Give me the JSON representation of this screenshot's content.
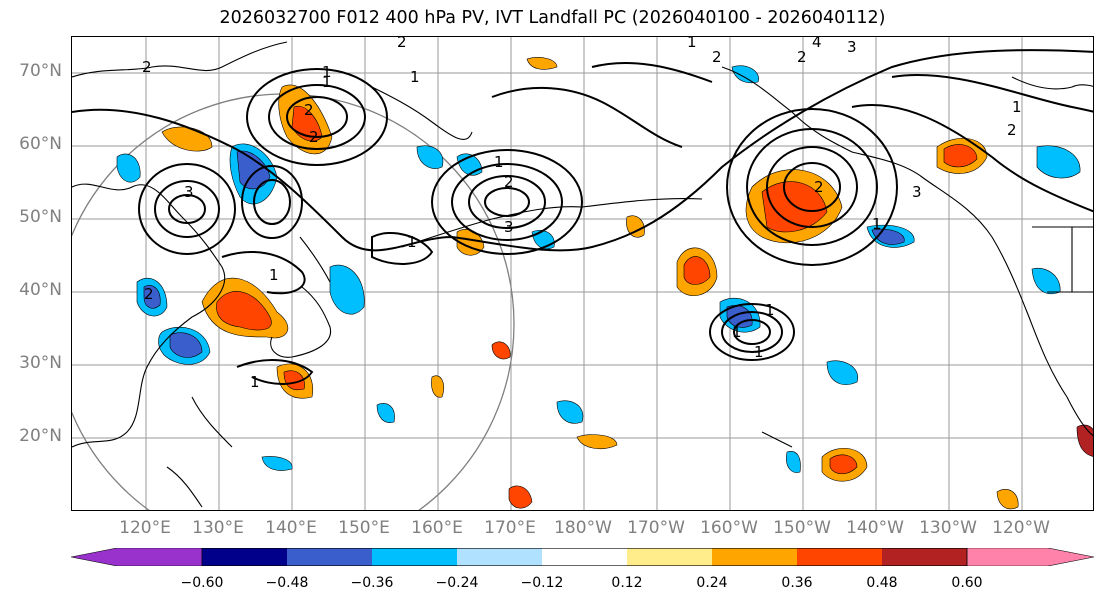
{
  "title": "2026032700 F012 400 hPa PV, IVT Landfall PC (2026040100 - 2026040112)",
  "lat_labels": [
    "70°N",
    "60°N",
    "50°N",
    "40°N",
    "30°N",
    "20°N"
  ],
  "lon_labels": [
    "120°E",
    "130°E",
    "140°E",
    "150°E",
    "160°E",
    "170°E",
    "180°W",
    "170°W",
    "160°W",
    "150°W",
    "140°W",
    "130°W",
    "120°W"
  ],
  "contour_labels": [
    "2",
    "1",
    "2",
    "1",
    "2",
    "1",
    "4",
    "3",
    "2",
    "2",
    "1",
    "2",
    "1",
    "2",
    "3",
    "1",
    "1",
    "1",
    "2",
    "3",
    "2",
    "1",
    "2",
    "3",
    "1",
    "1",
    "1",
    "1"
  ],
  "colorbar": {
    "ticks": [
      "−0.60",
      "−0.48",
      "−0.36",
      "−0.24",
      "−0.12",
      "0.12",
      "0.24",
      "0.36",
      "0.48",
      "0.60"
    ],
    "colors": [
      "#9932cc",
      "#00008b",
      "#3a5fcd",
      "#00bfff",
      "#b0e2ff",
      "#ffffff",
      "#ffec8b",
      "#ffa500",
      "#ff4500",
      "#b22222",
      "#ff82ab"
    ]
  }
}
